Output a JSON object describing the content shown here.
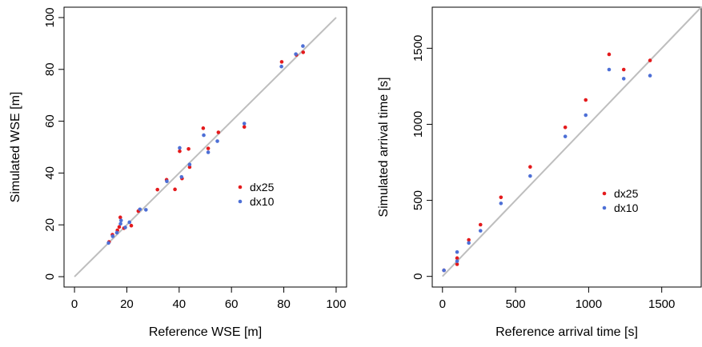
{
  "chart_data": [
    {
      "type": "scatter",
      "xlabel": "Reference WSE [m]",
      "ylabel": "Simulated WSE [m]",
      "xlim": [
        -4,
        104
      ],
      "ylim": [
        -4,
        104
      ],
      "xticks": [
        "0",
        "20",
        "40",
        "60",
        "80",
        "100"
      ],
      "xtick_values": [
        0,
        20,
        40,
        60,
        80,
        100
      ],
      "yticks": [
        "0",
        "20",
        "40",
        "60",
        "80",
        "100"
      ],
      "ytick_values": [
        0,
        20,
        40,
        60,
        80,
        100
      ],
      "reference_line": {
        "from": [
          0,
          0
        ],
        "to": [
          100,
          100
        ],
        "color": "#bebebe"
      },
      "legend_position": "center-right",
      "grid": false,
      "series": [
        {
          "name": "dx25",
          "color": "#e41a1c",
          "points": [
            [
              13.2,
              13.4
            ],
            [
              14.5,
              16.2
            ],
            [
              16.4,
              17.9
            ],
            [
              17.1,
              19.2
            ],
            [
              17.5,
              22.9
            ],
            [
              18.9,
              18.7
            ],
            [
              21.7,
              19.7
            ],
            [
              24.4,
              25.3
            ],
            [
              31.7,
              33.6
            ],
            [
              35.2,
              37.4
            ],
            [
              38.4,
              33.7
            ],
            [
              40.2,
              48.4
            ],
            [
              41.1,
              37.9
            ],
            [
              43.6,
              49.3
            ],
            [
              44.0,
              42.3
            ],
            [
              49.2,
              57.3
            ],
            [
              51.1,
              49.5
            ],
            [
              55.0,
              55.7
            ],
            [
              64.9,
              57.8
            ],
            [
              79.2,
              82.9
            ],
            [
              84.8,
              85.6
            ],
            [
              87.4,
              86.6
            ]
          ]
        },
        {
          "name": "dx10",
          "color": "#4d6fd6",
          "points": [
            [
              13.0,
              13.0
            ],
            [
              14.6,
              15.6
            ],
            [
              16.2,
              17.0
            ],
            [
              17.6,
              20.4
            ],
            [
              17.8,
              21.7
            ],
            [
              19.4,
              19.0
            ],
            [
              21.0,
              21.0
            ],
            [
              25.0,
              26.0
            ],
            [
              27.3,
              25.8
            ],
            [
              35.3,
              36.8
            ],
            [
              40.2,
              49.7
            ],
            [
              40.9,
              38.5
            ],
            [
              44.0,
              43.3
            ],
            [
              49.4,
              54.6
            ],
            [
              51.1,
              48.0
            ],
            [
              54.6,
              52.3
            ],
            [
              64.9,
              59.1
            ],
            [
              79.1,
              81.1
            ],
            [
              84.6,
              85.9
            ],
            [
              87.3,
              89.0
            ]
          ]
        }
      ]
    },
    {
      "type": "scatter",
      "xlabel": "Reference arrival time [s]",
      "ylabel": "Simulated arrival time [s]",
      "xlim": [
        -70,
        1770
      ],
      "ylim": [
        -70,
        1770
      ],
      "xticks": [
        "0",
        "500",
        "1000",
        "1500"
      ],
      "xtick_values": [
        0,
        500,
        1000,
        1500
      ],
      "yticks": [
        "0",
        "500",
        "1000",
        "1500"
      ],
      "ytick_values": [
        0,
        500,
        1000,
        1500
      ],
      "reference_line": {
        "from": [
          0,
          0
        ],
        "to": [
          1770,
          1770
        ],
        "color": "#bebebe"
      },
      "legend_position": "center-right",
      "grid": false,
      "series": [
        {
          "name": "dx25",
          "color": "#e41a1c",
          "points": [
            [
              10,
              40
            ],
            [
              100,
              80
            ],
            [
              100,
              120
            ],
            [
              180,
              240
            ],
            [
              260,
              340
            ],
            [
              400,
              520
            ],
            [
              600,
              720
            ],
            [
              840,
              980
            ],
            [
              980,
              1160
            ],
            [
              1140,
              1460
            ],
            [
              1240,
              1360
            ],
            [
              1420,
              1420
            ]
          ]
        },
        {
          "name": "dx10",
          "color": "#4d6fd6",
          "points": [
            [
              10,
              40
            ],
            [
              100,
              100
            ],
            [
              100,
              160
            ],
            [
              180,
              220
            ],
            [
              260,
              300
            ],
            [
              400,
              480
            ],
            [
              600,
              660
            ],
            [
              840,
              920
            ],
            [
              980,
              1060
            ],
            [
              1140,
              1360
            ],
            [
              1240,
              1300
            ],
            [
              1420,
              1320
            ]
          ]
        }
      ]
    }
  ]
}
